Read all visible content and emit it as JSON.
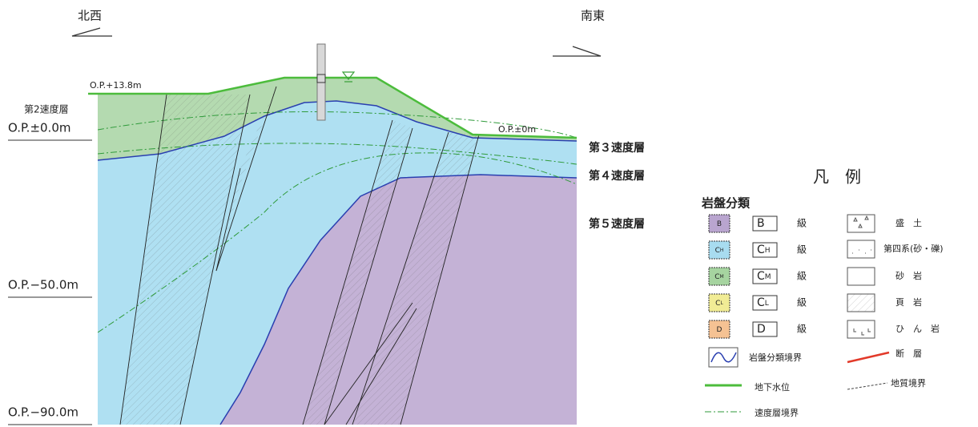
{
  "directions": {
    "left": "北西",
    "right": "南東"
  },
  "elevations": {
    "top_left": "O.P.+13.8m",
    "right_ground": "O.P.±0m",
    "zero": "O.P.±0.0m",
    "minus50": "O.P.−50.0m",
    "minus90": "O.P.−90.0m"
  },
  "layers": [
    "第2速度層",
    "第３速度層",
    "第４速度層",
    "第５速度層"
  ],
  "legend": {
    "title": "凡　例",
    "rock_heading": "岩盤分類",
    "classes": [
      {
        "main": "B",
        "suffix": "級"
      },
      {
        "main": "C",
        "sub": "H",
        "suffix": "級"
      },
      {
        "main": "C",
        "sub": "M",
        "suffix": "級"
      },
      {
        "main": "C",
        "sub": "L",
        "suffix": "級"
      },
      {
        "main": "D",
        "suffix": "級"
      }
    ],
    "geology": [
      "盛　土",
      "第四系(砂・礫)",
      "砂　岩",
      "頁　岩",
      "ひ　ん　岩"
    ],
    "lines": {
      "rock_boundary": "岩盤分類境界",
      "fault": "断　層",
      "water_table": "地下水位",
      "geologic_boundary": "地質境界",
      "velocity_boundary": "速度層境界"
    }
  }
}
